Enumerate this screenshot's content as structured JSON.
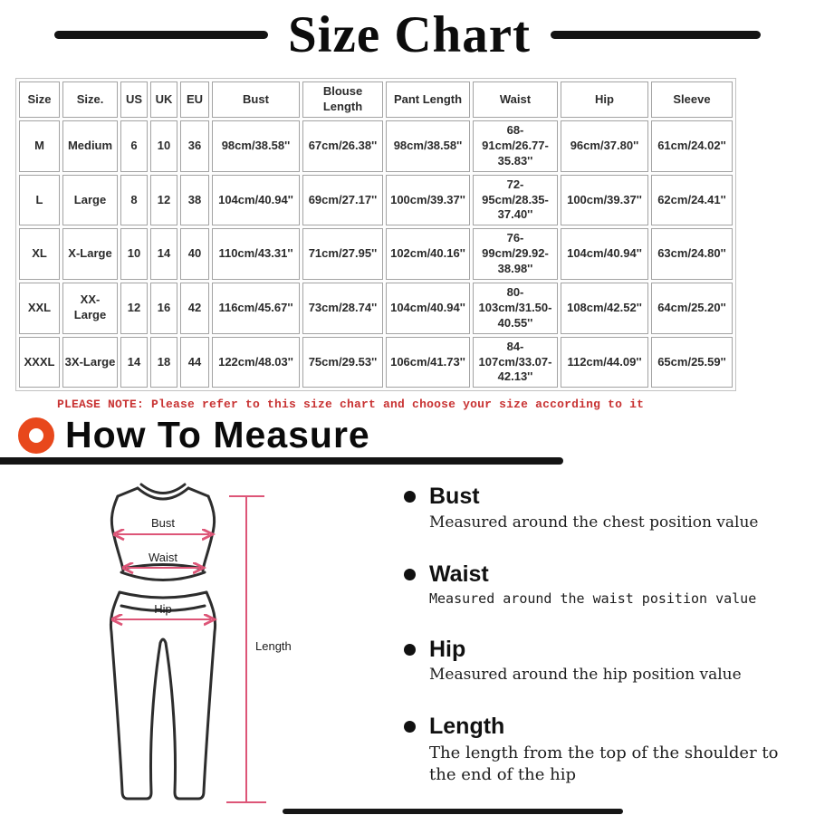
{
  "title": "Size Chart",
  "size_table": {
    "columns": [
      "Size",
      "Size.",
      "US",
      "UK",
      "EU",
      "Bust",
      "Blouse Length",
      "Pant Length",
      "Waist",
      "Hip",
      "Sleeve"
    ],
    "rows": [
      [
        "M",
        "Medium",
        "6",
        "10",
        "36",
        "98cm/38.58''",
        "67cm/26.38''",
        "98cm/38.58''",
        "68-91cm/26.77-35.83''",
        "96cm/37.80''",
        "61cm/24.02''"
      ],
      [
        "L",
        "Large",
        "8",
        "12",
        "38",
        "104cm/40.94''",
        "69cm/27.17''",
        "100cm/39.37''",
        "72-95cm/28.35-37.40''",
        "100cm/39.37''",
        "62cm/24.41''"
      ],
      [
        "XL",
        "X-Large",
        "10",
        "14",
        "40",
        "110cm/43.31''",
        "71cm/27.95''",
        "102cm/40.16''",
        "76-99cm/29.92-38.98''",
        "104cm/40.94''",
        "63cm/24.80''"
      ],
      [
        "XXL",
        "XX-Large",
        "12",
        "16",
        "42",
        "116cm/45.67''",
        "73cm/28.74''",
        "104cm/40.94''",
        "80-103cm/31.50-40.55''",
        "108cm/42.52''",
        "64cm/25.20''"
      ],
      [
        "XXXL",
        "3X-Large",
        "14",
        "18",
        "44",
        "122cm/48.03''",
        "75cm/29.53''",
        "106cm/41.73''",
        "84-107cm/33.07-42.13''",
        "112cm/44.09''",
        "65cm/25.59''"
      ]
    ]
  },
  "note": "PLEASE NOTE: Please refer to this size chart and choose your size according to it",
  "measure": {
    "heading": "How To Measure",
    "figure": {
      "bust": "Bust",
      "waist": "Waist",
      "hip": "Hip",
      "length": "Length"
    },
    "items": [
      {
        "label": "Bust",
        "desc": "Measured around the chest position value"
      },
      {
        "label": "Waist",
        "desc": "Measured around the waist position value"
      },
      {
        "label": "Hip",
        "desc": "Measured around the  hip position value"
      },
      {
        "label": "Length",
        "desc": "The length from the top of the shoulder to the end of the hip"
      }
    ]
  },
  "colors": {
    "accent_orange": "#e8481c",
    "note_red": "#c83232",
    "measure_pink": "#dd5577",
    "line_black": "#141414"
  }
}
